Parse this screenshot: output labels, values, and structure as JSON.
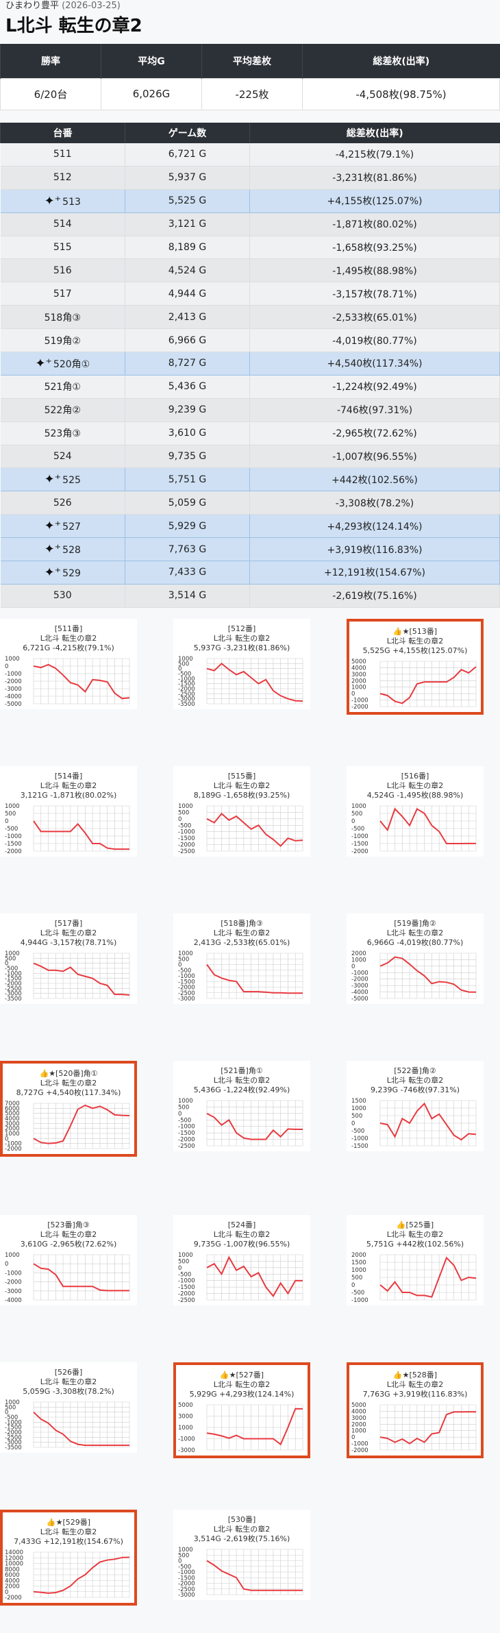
{
  "store": "ひまわり豊平",
  "date": "(2026-03-25)",
  "title": "L北斗 転生の章2",
  "summary": {
    "headers": [
      "勝率",
      "平均G",
      "平均差枚",
      "総差枚(出率)"
    ],
    "values": [
      "6/20台",
      "6,026G",
      "-225枚",
      "-4,508枚(98.75%)"
    ]
  },
  "table_headers": [
    "台番",
    "ゲーム数",
    "総差枚(出率)"
  ],
  "rows": [
    {
      "machine": "511",
      "games": "6,721 G",
      "result": "-4,215枚(79.1%)",
      "win": false
    },
    {
      "machine": "512",
      "games": "5,937 G",
      "result": "-3,231枚(81.86%)",
      "win": false
    },
    {
      "machine": "513",
      "games": "5,525 G",
      "result": "+4,155枚(125.07%)",
      "win": true
    },
    {
      "machine": "514",
      "games": "3,121 G",
      "result": "-1,871枚(80.02%)",
      "win": false
    },
    {
      "machine": "515",
      "games": "8,189 G",
      "result": "-1,658枚(93.25%)",
      "win": false
    },
    {
      "machine": "516",
      "games": "4,524 G",
      "result": "-1,495枚(88.98%)",
      "win": false
    },
    {
      "machine": "517",
      "games": "4,944 G",
      "result": "-3,157枚(78.71%)",
      "win": false
    },
    {
      "machine": "518角③",
      "games": "2,413 G",
      "result": "-2,533枚(65.01%)",
      "win": false
    },
    {
      "machine": "519角②",
      "games": "6,966 G",
      "result": "-4,019枚(80.77%)",
      "win": false
    },
    {
      "machine": "520角①",
      "games": "8,727 G",
      "result": "+4,540枚(117.34%)",
      "win": true
    },
    {
      "machine": "521角①",
      "games": "5,436 G",
      "result": "-1,224枚(92.49%)",
      "win": false
    },
    {
      "machine": "522角②",
      "games": "9,239 G",
      "result": "-746枚(97.31%)",
      "win": false
    },
    {
      "machine": "523角③",
      "games": "3,610 G",
      "result": "-2,965枚(72.62%)",
      "win": false
    },
    {
      "machine": "524",
      "games": "9,735 G",
      "result": "-1,007枚(96.55%)",
      "win": false
    },
    {
      "machine": "525",
      "games": "5,751 G",
      "result": "+442枚(102.56%)",
      "win": true
    },
    {
      "machine": "526",
      "games": "5,059 G",
      "result": "-3,308枚(78.2%)",
      "win": false
    },
    {
      "machine": "527",
      "games": "5,929 G",
      "result": "+4,293枚(124.14%)",
      "win": true
    },
    {
      "machine": "528",
      "games": "7,763 G",
      "result": "+3,919枚(116.83%)",
      "win": true
    },
    {
      "machine": "529",
      "games": "7,433 G",
      "result": "+12,191枚(154.67%)",
      "win": true
    },
    {
      "machine": "530",
      "games": "3,514 G",
      "result": "-2,619枚(75.16%)",
      "win": false
    }
  ],
  "graphs": [
    {
      "l1": "[511番]",
      "l2": "L北斗 転生の章2",
      "l3": "6,721G -4,215枚(79.1%)",
      "hl": false,
      "ticks": [
        1000,
        0,
        -1000,
        -2000,
        -3000,
        -4000,
        -5000
      ],
      "v": [
        0,
        -200,
        200,
        -300,
        -1200,
        -2200,
        -2500,
        -3400,
        -1800,
        -1900,
        -2100,
        -3600,
        -4300,
        -4200
      ]
    },
    {
      "l1": "[512番]",
      "l2": "L北斗 転生の章2",
      "l3": "5,937G -3,231枚(81.86%)",
      "hl": false,
      "ticks": [
        1000,
        500,
        0,
        -500,
        -1000,
        -1500,
        -2000,
        -2500,
        -3000,
        -3500
      ],
      "v": [
        0,
        -200,
        500,
        -100,
        -600,
        -300,
        -900,
        -1500,
        -1100,
        -2200,
        -2700,
        -3000,
        -3200,
        -3230
      ]
    },
    {
      "l1": "👍★[513番]",
      "l2": "L北斗 転生の章2",
      "l3": "5,525G +4,155枚(125.07%)",
      "hl": true,
      "ticks": [
        5000,
        4000,
        3000,
        2000,
        1000,
        0,
        -1000,
        -2000
      ],
      "v": [
        0,
        -300,
        -1200,
        -1500,
        -600,
        1500,
        1800,
        1800,
        1800,
        1800,
        2500,
        3700,
        3200,
        4155
      ]
    },
    {
      "l1": "[514番]",
      "l2": "L北斗 転生の章2",
      "l3": "3,121G -1,871枚(80.02%)",
      "hl": false,
      "ticks": [
        1000,
        500,
        0,
        -500,
        -1000,
        -1500,
        -2000
      ],
      "v": [
        0,
        -700,
        -700,
        -700,
        -700,
        -700,
        -200,
        -800,
        -1500,
        -1500,
        -1800,
        -1870,
        -1870,
        -1871
      ]
    },
    {
      "l1": "[515番]",
      "l2": "L北斗 転生の章2",
      "l3": "8,189G -1,658枚(93.25%)",
      "hl": false,
      "ticks": [
        1000,
        500,
        0,
        -500,
        -1000,
        -1500,
        -2000,
        -2500
      ],
      "v": [
        0,
        -300,
        400,
        -100,
        200,
        -300,
        -800,
        -500,
        -1200,
        -1600,
        -2100,
        -1500,
        -1700,
        -1658
      ]
    },
    {
      "l1": "[516番]",
      "l2": "L北斗 転生の章2",
      "l3": "4,524G -1,495枚(88.98%)",
      "hl": false,
      "ticks": [
        1000,
        500,
        0,
        -500,
        -1000,
        -1500,
        -2000
      ],
      "v": [
        0,
        -600,
        800,
        300,
        -300,
        800,
        500,
        -300,
        -700,
        -1500,
        -1500,
        -1500,
        -1495,
        -1495
      ]
    },
    {
      "l1": "[517番]",
      "l2": "L北斗 転生の章2",
      "l3": "4,944G -3,157枚(78.71%)",
      "hl": false,
      "ticks": [
        1000,
        500,
        0,
        -500,
        -1000,
        -1500,
        -2000,
        -2500,
        -3000,
        -3500
      ],
      "v": [
        0,
        -300,
        -700,
        -700,
        -800,
        -400,
        -1100,
        -1300,
        -1500,
        -2000,
        -2200,
        -3100,
        -3100,
        -3157
      ]
    },
    {
      "l1": "[518番]角③",
      "l2": "L北斗 転生の章2",
      "l3": "2,413G -2,533枚(65.01%)",
      "hl": false,
      "ticks": [
        1000,
        500,
        0,
        -500,
        -1000,
        -1500,
        -2000,
        -2500,
        -3000
      ],
      "v": [
        0,
        -900,
        -1200,
        -1400,
        -1500,
        -2400,
        -2400,
        -2400,
        -2450,
        -2500,
        -2500,
        -2533,
        -2533,
        -2533
      ]
    },
    {
      "l1": "[519番]角②",
      "l2": "L北斗 転生の章2",
      "l3": "6,966G -4,019枚(80.77%)",
      "hl": false,
      "ticks": [
        2000,
        1000,
        0,
        -1000,
        -2000,
        -3000,
        -4000,
        -5000
      ],
      "v": [
        0,
        500,
        1400,
        1200,
        300,
        -700,
        -1500,
        -2700,
        -2400,
        -2500,
        -2800,
        -3700,
        -4000,
        -4019
      ]
    },
    {
      "l1": "👍★[520番]角①",
      "l2": "L北斗 転生の章2",
      "l3": "8,727G +4,540枚(117.34%)",
      "hl": true,
      "ticks": [
        7000,
        6000,
        5000,
        4000,
        3000,
        2000,
        1000,
        0,
        -1000,
        -2000
      ],
      "v": [
        0,
        -800,
        -1000,
        -900,
        -500,
        2500,
        5800,
        6600,
        6000,
        6400,
        5700,
        4700,
        4600,
        4540
      ]
    },
    {
      "l1": "[521番]角①",
      "l2": "L北斗 転生の章2",
      "l3": "5,436G -1,224枚(92.49%)",
      "hl": false,
      "ticks": [
        1000,
        500,
        0,
        -500,
        -1000,
        -1500,
        -2000,
        -2500
      ],
      "v": [
        0,
        -300,
        -900,
        -500,
        -1500,
        -1900,
        -2000,
        -2000,
        -2000,
        -1300,
        -1800,
        -1200,
        -1224,
        -1224
      ]
    },
    {
      "l1": "[522番]角②",
      "l2": "L北斗 転生の章2",
      "l3": "9,239G -746枚(97.31%)",
      "hl": false,
      "ticks": [
        1500,
        1000,
        500,
        0,
        -500,
        -1000,
        -1500
      ],
      "v": [
        0,
        -100,
        -900,
        300,
        0,
        800,
        1300,
        300,
        600,
        -100,
        -800,
        -1100,
        -700,
        -746
      ]
    },
    {
      "l1": "[523番]角③",
      "l2": "L北斗 転生の章2",
      "l3": "3,610G -2,965枚(72.62%)",
      "hl": false,
      "ticks": [
        1000,
        0,
        -1000,
        -2000,
        -3000,
        -4000
      ],
      "v": [
        0,
        -500,
        -600,
        -1200,
        -2500,
        -2500,
        -2500,
        -2500,
        -2500,
        -2900,
        -2965,
        -2965,
        -2965,
        -2965
      ]
    },
    {
      "l1": "[524番]",
      "l2": "L北斗 転生の章2",
      "l3": "9,735G -1,007枚(96.55%)",
      "hl": false,
      "ticks": [
        1000,
        500,
        0,
        -500,
        -1000,
        -1500,
        -2000,
        -2500
      ],
      "v": [
        0,
        300,
        -500,
        800,
        -200,
        100,
        -700,
        -400,
        -1500,
        -2200,
        -1200,
        -2000,
        -1000,
        -1007
      ]
    },
    {
      "l1": "👍[525番]",
      "l2": "L北斗 転生の章2",
      "l3": "5,751G +442枚(102.56%)",
      "hl": false,
      "ticks": [
        2000,
        1500,
        1000,
        500,
        0,
        -500,
        -1000
      ],
      "v": [
        0,
        -400,
        200,
        -500,
        -500,
        -700,
        -700,
        -800,
        500,
        1800,
        1300,
        300,
        500,
        442
      ]
    },
    {
      "l1": "[526番]",
      "l2": "L北斗 転生の章2",
      "l3": "5,059G -3,308枚(78.2%)",
      "hl": false,
      "ticks": [
        1000,
        500,
        0,
        -500,
        -1000,
        -1500,
        -2000,
        -2500,
        -3000,
        -3500
      ],
      "v": [
        0,
        -700,
        -1100,
        -1800,
        -2200,
        -2900,
        -3200,
        -3300,
        -3300,
        -3300,
        -3300,
        -3308,
        -3308,
        -3308
      ]
    },
    {
      "l1": "👍★[527番]",
      "l2": "L北斗 転生の章2",
      "l3": "5,929G +4,293枚(124.14%)",
      "hl": true,
      "ticks": [
        5000,
        3000,
        1000,
        -1000,
        -3000
      ],
      "v": [
        0,
        -200,
        -500,
        -900,
        -400,
        -1000,
        -1000,
        -1000,
        -1000,
        -1000,
        -2000,
        1000,
        4300,
        4293
      ]
    },
    {
      "l1": "👍★[528番]",
      "l2": "L北斗 転生の章2",
      "l3": "7,763G +3,919枚(116.83%)",
      "hl": true,
      "ticks": [
        5000,
        4000,
        3000,
        2000,
        1000,
        0,
        -1000,
        -2000
      ],
      "v": [
        0,
        -200,
        -800,
        -300,
        -1000,
        -200,
        -800,
        500,
        700,
        3500,
        3900,
        3900,
        3919,
        3919
      ]
    },
    {
      "l1": "👍★[529番]",
      "l2": "L北斗 転生の章2",
      "l3": "7,433G +12,191枚(154.67%)",
      "hl": true,
      "ticks": [
        14000,
        12000,
        10000,
        8000,
        6000,
        4000,
        2000,
        0,
        -2000
      ],
      "v": [
        0,
        -200,
        -500,
        -300,
        500,
        2000,
        4500,
        6000,
        8500,
        10500,
        11200,
        11500,
        12100,
        12191
      ]
    },
    {
      "l1": "[530番]",
      "l2": "L北斗 転生の章2",
      "l3": "3,514G -2,619枚(75.16%)",
      "hl": false,
      "ticks": [
        1000,
        500,
        0,
        -500,
        -1000,
        -1500,
        -2000,
        -2500,
        -3000
      ],
      "v": [
        0,
        -400,
        -900,
        -1200,
        -1500,
        -2500,
        -2619,
        -2619,
        -2619,
        -2619,
        -2619,
        -2619,
        -2619,
        -2619
      ]
    }
  ]
}
